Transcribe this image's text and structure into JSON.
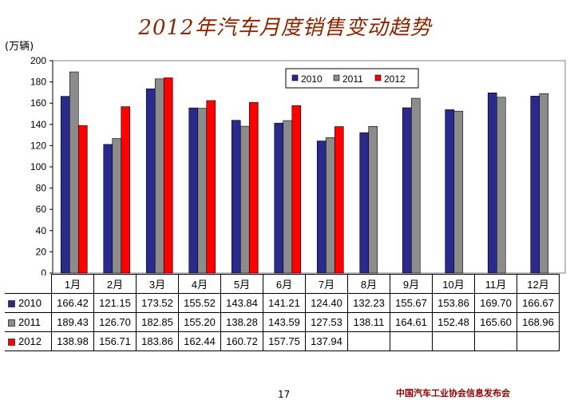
{
  "title": "2012年汽车月度销售变动趋势",
  "unit_label": "(万辆)",
  "page_number": "17",
  "footer": "中国汽车工业协会信息发布会",
  "chart_data": {
    "type": "bar",
    "categories": [
      "1月",
      "2月",
      "3月",
      "4月",
      "5月",
      "6月",
      "7月",
      "8月",
      "9月",
      "10月",
      "11月",
      "12月"
    ],
    "series": [
      {
        "name": "2010",
        "color": "#2a2a8c",
        "values": [
          166.42,
          121.15,
          173.52,
          155.52,
          143.84,
          141.21,
          124.4,
          132.23,
          155.67,
          153.86,
          169.7,
          166.67
        ],
        "labels": [
          "166.42",
          "121.15",
          "173.52",
          "155.52",
          "143.84",
          "141.21",
          "124.40",
          "132.23",
          "155.67",
          "153.86",
          "169.70",
          "166.67"
        ]
      },
      {
        "name": "2011",
        "color": "#8c8c8c",
        "values": [
          189.43,
          126.7,
          182.85,
          155.2,
          138.28,
          143.59,
          127.53,
          138.11,
          164.61,
          152.48,
          165.6,
          168.96
        ],
        "labels": [
          "189.43",
          "126.70",
          "182.85",
          "155.20",
          "138.28",
          "143.59",
          "127.53",
          "138.11",
          "164.61",
          "152.48",
          "165.60",
          "168.96"
        ]
      },
      {
        "name": "2012",
        "color": "#ff0000",
        "values": [
          138.98,
          156.71,
          183.86,
          162.44,
          160.72,
          157.75,
          137.94,
          null,
          null,
          null,
          null,
          null
        ],
        "labels": [
          "138.98",
          "156.71",
          "183.86",
          "162.44",
          "160.72",
          "157.75",
          "137.94",
          "",
          "",
          "",
          "",
          ""
        ]
      }
    ],
    "ylim": [
      0,
      200
    ],
    "yticks": [
      0,
      20,
      40,
      60,
      80,
      100,
      120,
      140,
      160,
      180,
      200
    ],
    "legend_position": "top-right",
    "grid": false
  }
}
